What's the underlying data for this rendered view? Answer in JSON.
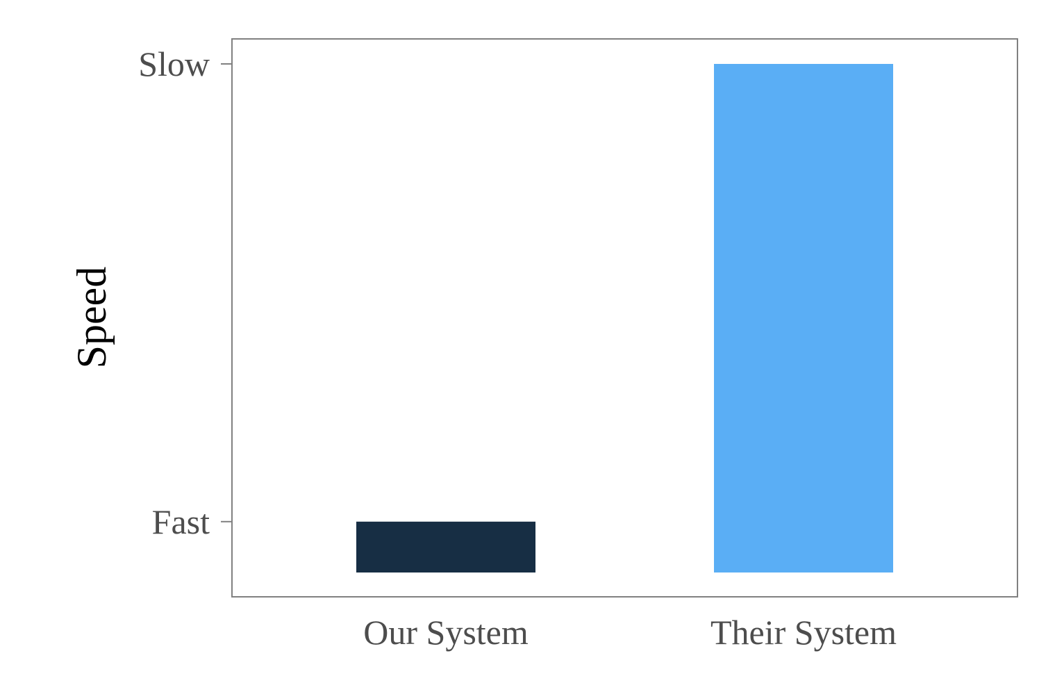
{
  "chart_data": {
    "type": "bar",
    "categories": [
      "Our System",
      "Their System"
    ],
    "values": [
      0.1,
      1.0
    ],
    "ylabel": "Speed",
    "xlabel": "",
    "y_ticks": [
      {
        "label": "Fast",
        "value": 0.1
      },
      {
        "label": "Slow",
        "value": 1.0
      }
    ],
    "ylim": [
      0,
      1
    ],
    "colors": [
      "#172e44",
      "#5aaef5"
    ],
    "grid": false,
    "legend": "none",
    "frame_color": "#808080"
  }
}
